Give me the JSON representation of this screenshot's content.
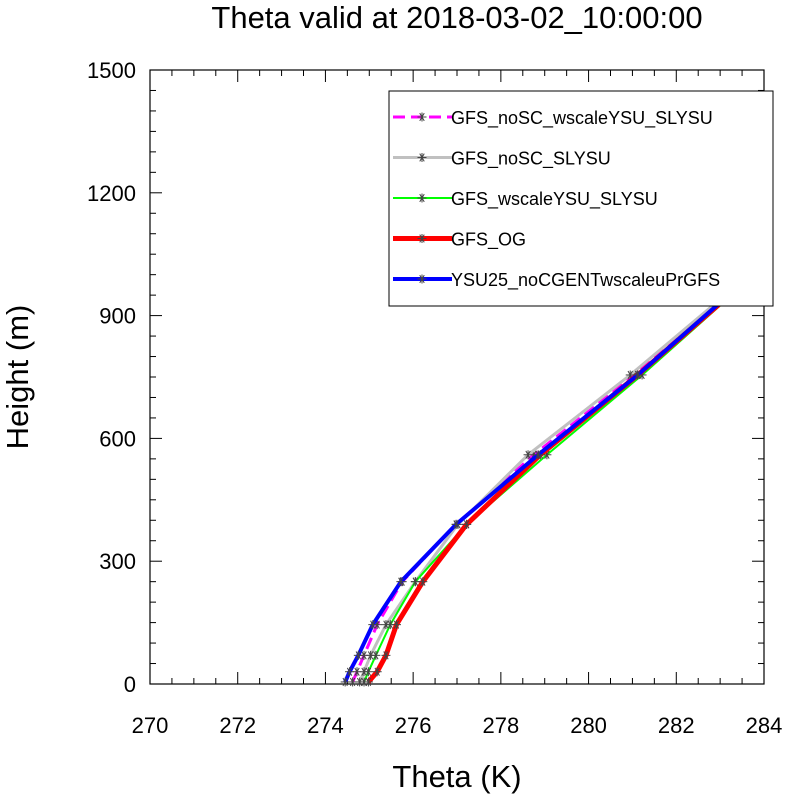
{
  "chart_data": {
    "type": "line",
    "title": "Theta valid at 2018-03-02_10:00:00",
    "xlabel": "Theta (K)",
    "ylabel": "Height (m)",
    "xlim": [
      270,
      284
    ],
    "ylim": [
      0,
      1500
    ],
    "x_ticks": [
      "270",
      "272",
      "274",
      "276",
      "278",
      "280",
      "282",
      "284"
    ],
    "y_ticks": [
      "0",
      "300",
      "600",
      "900",
      "1200",
      "1500"
    ],
    "legend_position": "top-right",
    "heights": [
      5,
      30,
      70,
      145,
      250,
      390,
      560,
      755,
      965,
      1050
    ],
    "series": [
      {
        "name": "GFS_noSC_wscaleYSU_SLYSU",
        "color": "#ff00ff",
        "dash": true,
        "width": 3,
        "x": [
          274.62,
          274.72,
          274.88,
          275.18,
          275.75,
          276.98,
          278.75,
          281.05,
          283.32,
          284.05
        ]
      },
      {
        "name": "GFS_noSC_SLYSU",
        "color": "#c0c0c0",
        "dash": false,
        "width": 3,
        "x": [
          274.78,
          274.88,
          275.03,
          275.38,
          276.05,
          277.02,
          278.62,
          280.95,
          283.28,
          284.0
        ]
      },
      {
        "name": "GFS_wscaleYSU_SLYSU",
        "color": "#00ff00",
        "dash": false,
        "width": 2,
        "x": [
          274.88,
          274.98,
          275.15,
          275.48,
          276.05,
          277.22,
          279.05,
          281.22,
          283.42,
          284.05
        ]
      },
      {
        "name": "GFS_OG",
        "color": "#ff0000",
        "dash": false,
        "width": 5,
        "x": [
          274.98,
          275.18,
          275.38,
          275.62,
          276.22,
          277.22,
          278.9,
          281.12,
          283.38,
          284.05
        ]
      },
      {
        "name": "YSU25_noCGENTwscaleuPrGFS",
        "color": "#0000ff",
        "dash": false,
        "width": 4,
        "x": [
          274.45,
          274.55,
          274.75,
          275.08,
          275.72,
          276.98,
          278.85,
          281.12,
          283.35,
          284.05
        ]
      }
    ]
  }
}
